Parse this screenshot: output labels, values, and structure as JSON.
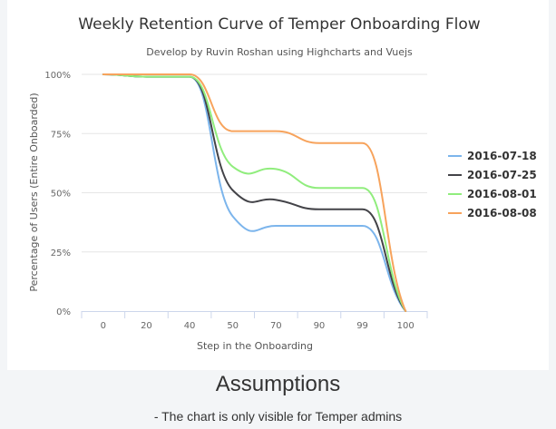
{
  "chart_data": {
    "type": "line",
    "title": "Weekly Retention Curve of Temper Onboarding Flow",
    "subtitle": "Develop by Ruvin Roshan using Highcharts and Vuejs",
    "xlabel": "Step in the Onboarding",
    "ylabel": "Percentage of Users (Entire Onboarded)",
    "categories": [
      "0",
      "20",
      "40",
      "50",
      "70",
      "90",
      "99",
      "100"
    ],
    "ylim": [
      0,
      100
    ],
    "yticks": [
      "0%",
      "25%",
      "50%",
      "75%",
      "100%"
    ],
    "grid": true,
    "legend_position": "right",
    "series": [
      {
        "name": "2016-07-18",
        "color": "#7cb5ec",
        "values": [
          100,
          99,
          99,
          40,
          36,
          36,
          36,
          0
        ]
      },
      {
        "name": "2016-07-25",
        "color": "#434348",
        "values": [
          100,
          99,
          99,
          51,
          47,
          43,
          43,
          0
        ]
      },
      {
        "name": "2016-08-01",
        "color": "#90ed7d",
        "values": [
          100,
          99,
          99,
          61,
          60,
          52,
          52,
          0
        ]
      },
      {
        "name": "2016-08-08",
        "color": "#f7a35c",
        "values": [
          100,
          100,
          100,
          76,
          76,
          71,
          71,
          0
        ]
      }
    ]
  },
  "assumptions": {
    "heading": "Assumptions",
    "items": [
      "- The chart is only visible for Temper admins"
    ]
  }
}
